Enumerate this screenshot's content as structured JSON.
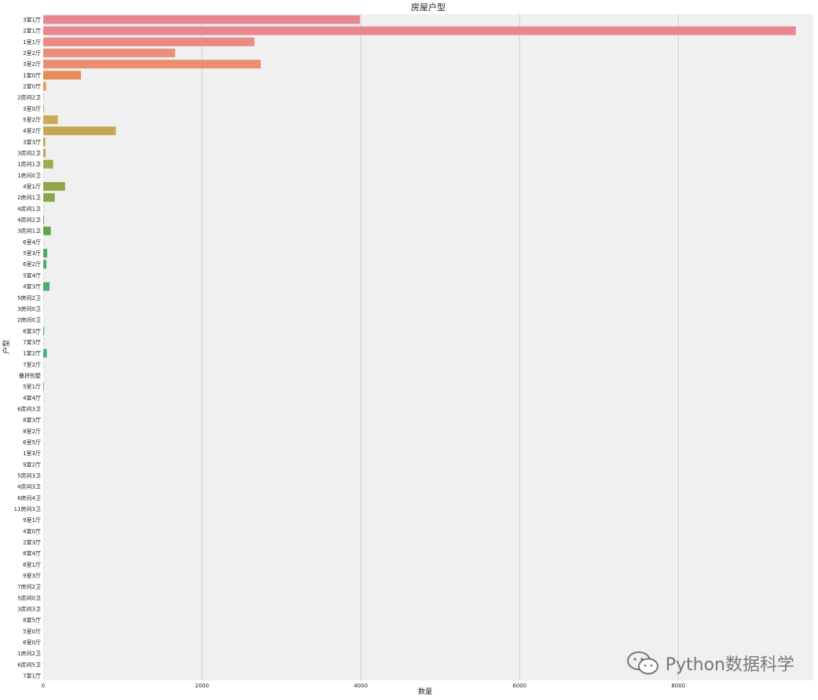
{
  "chart_data": {
    "type": "bar",
    "orientation": "horizontal",
    "title": "房屋户型",
    "xlabel": "数量",
    "ylabel": "户型",
    "xlim": [
      0,
      9700
    ],
    "xticks": [
      0,
      2000,
      4000,
      6000,
      8000
    ],
    "grid": true,
    "categories": [
      "3室1厅",
      "2室1厅",
      "1室1厅",
      "2室2厅",
      "3室2厅",
      "1室0厅",
      "2室0厅",
      "2房间2卫",
      "3室0厅",
      "5室2厅",
      "4室2厅",
      "3室3厅",
      "3房间2卫",
      "1房间1卫",
      "1房间0卫",
      "4室1厅",
      "2房间1卫",
      "4房间1卫",
      "4房间2卫",
      "3房间1卫",
      "6室4厅",
      "5室3厅",
      "6室2厅",
      "5室4厅",
      "4室3厅",
      "5房间2卫",
      "3房间0卫",
      "2房间0卫",
      "6室3厅",
      "7室3厅",
      "1室2厅",
      "7室2厅",
      "叠拼别墅",
      "5室1厅",
      "4室4厅",
      "6房间3卫",
      "8室3厅",
      "8室2厅",
      "6室5厅",
      "1室3厅",
      "9室2厅",
      "5房间3卫",
      "4房间3卫",
      "6房间4卫",
      "11房间3卫",
      "9室1厅",
      "4室0厅",
      "2室3厅",
      "8室4厅",
      "6室1厅",
      "9室3厅",
      "7房间2卫",
      "5房间0卫",
      "3房间3卫",
      "8室5厅",
      "5室0厅",
      "6室0厅",
      "1房间2卫",
      "6房间5卫",
      "7室1厅"
    ],
    "values": [
      3990,
      9480,
      2660,
      1660,
      2740,
      475,
      35,
      5,
      10,
      185,
      915,
      25,
      30,
      125,
      2,
      275,
      145,
      3,
      10,
      95,
      2,
      50,
      40,
      2,
      80,
      2,
      2,
      1,
      12,
      3,
      45,
      2,
      1,
      8,
      2,
      1,
      1,
      1,
      1,
      1,
      1,
      1,
      1,
      1,
      1,
      1,
      1,
      1,
      1,
      1,
      1,
      1,
      1,
      1,
      1,
      1,
      1,
      1,
      1,
      1
    ],
    "colors": [
      "#e8878f",
      "#e8878f",
      "#e98a84",
      "#e98f7c",
      "#e98f6f",
      "#e88c55",
      "#dd9a57",
      "#d9a25f",
      "#d6a85e",
      "#cea855",
      "#c3a752",
      "#b9a84f",
      "#b2a84c",
      "#a5a84b",
      "#a2a94a",
      "#91a649",
      "#89a549",
      "#80a54a",
      "#6fa749",
      "#5ea84b",
      "#55a952",
      "#51aa5b",
      "#4fab62",
      "#4eab6b",
      "#4cac76",
      "#4bac80",
      "#4bac88",
      "#4aac90",
      "#4aaa98",
      "#4aac8c",
      "#4aab88",
      "#4aa9a0",
      "#4aa8a8",
      "#4aa6ae",
      "#4ca4b4",
      "#4ea2ba",
      "#5a9fc2",
      "#659ccb",
      "#7097d3",
      "#7b93d8",
      "#868fde",
      "#928ae2",
      "#9d85e6",
      "#a87fe6",
      "#b27be4",
      "#bb77e0",
      "#c474dc",
      "#cc71d6",
      "#d46fce",
      "#da6dc5",
      "#e06bbb",
      "#e46ab1",
      "#e76aa6",
      "#e96b9b",
      "#e96c92",
      "#e96d89",
      "#e96e82",
      "#e9707c",
      "#e97278",
      "#e97476"
    ],
    "watermark": "Python数据科学"
  }
}
